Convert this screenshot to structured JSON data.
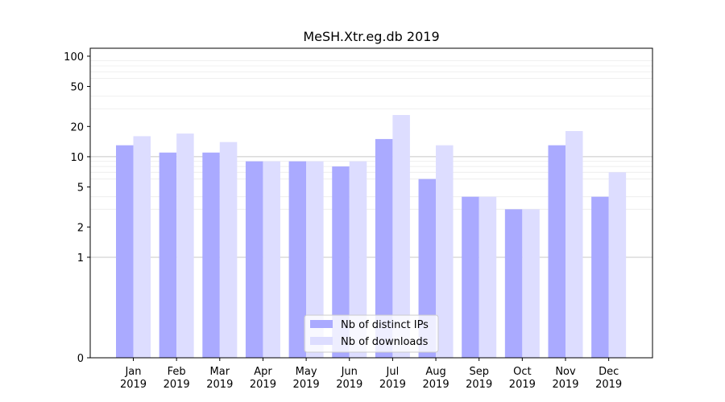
{
  "chart_data": {
    "type": "bar",
    "title": "MeSH.Xtr.eg.db 2019",
    "xlabel": "",
    "ylabel": "",
    "yscale": "symlog",
    "ylim": [
      0,
      120
    ],
    "y_ticks": [
      0,
      1,
      2,
      5,
      10,
      20,
      50,
      100
    ],
    "y_tick_labels": [
      "0",
      "1",
      "2",
      "5",
      "10",
      "20",
      "50",
      "100"
    ],
    "grid": true,
    "legend_position": "bottom-center",
    "categories": [
      [
        "Jan",
        "2019"
      ],
      [
        "Feb",
        "2019"
      ],
      [
        "Mar",
        "2019"
      ],
      [
        "Apr",
        "2019"
      ],
      [
        "May",
        "2019"
      ],
      [
        "Jun",
        "2019"
      ],
      [
        "Jul",
        "2019"
      ],
      [
        "Aug",
        "2019"
      ],
      [
        "Sep",
        "2019"
      ],
      [
        "Oct",
        "2019"
      ],
      [
        "Nov",
        "2019"
      ],
      [
        "Dec",
        "2019"
      ]
    ],
    "series": [
      {
        "name": "Nb of distinct IPs",
        "color": "#aaaaff",
        "values": [
          13,
          11,
          11,
          9,
          9,
          8,
          15,
          6,
          4,
          3,
          13,
          4
        ]
      },
      {
        "name": "Nb of downloads",
        "color": "#ddddff",
        "values": [
          16,
          17,
          14,
          9,
          9,
          9,
          26,
          13,
          4,
          3,
          18,
          7
        ]
      }
    ]
  }
}
